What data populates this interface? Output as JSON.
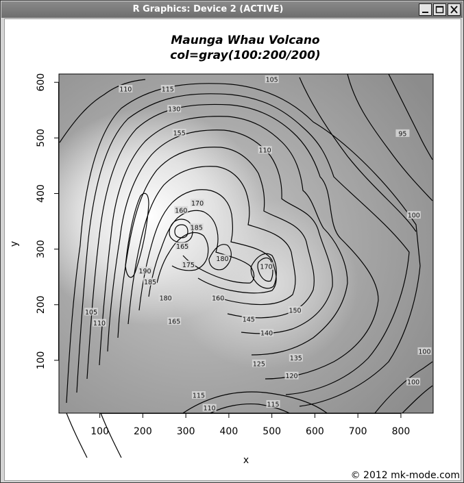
{
  "window": {
    "title": "R Graphics: Device 2 (ACTIVE)",
    "buttons": [
      {
        "name": "minimize",
        "icon": "minimize-icon"
      },
      {
        "name": "maximize",
        "icon": "maximize-icon"
      },
      {
        "name": "close",
        "icon": "close-icon"
      }
    ]
  },
  "plot": {
    "title_line1": "Maunga Whau Volcano",
    "title_line2": "col=gray(100:200/200)",
    "xlabel": "x",
    "ylabel": "y",
    "watermark": "© 2012 mk-mode.com"
  },
  "chart_data": {
    "type": "heatmap",
    "x_ticks": [
      "100",
      "200",
      "300",
      "400",
      "500",
      "600",
      "700",
      "800"
    ],
    "y_ticks": [
      "100",
      "200",
      "300",
      "400",
      "500",
      "600"
    ],
    "xlim": [
      5,
      875
    ],
    "ylim": [
      5,
      615
    ],
    "contour_labels": [
      {
        "text": "110",
        "x": 160,
        "y": 588
      },
      {
        "text": "115",
        "x": 258,
        "y": 588
      },
      {
        "text": "105",
        "x": 500,
        "y": 605
      },
      {
        "text": "130",
        "x": 273,
        "y": 552
      },
      {
        "text": "155",
        "x": 285,
        "y": 509
      },
      {
        "text": "110",
        "x": 484,
        "y": 478
      },
      {
        "text": "95",
        "x": 804,
        "y": 508
      },
      {
        "text": "100",
        "x": 830,
        "y": 361
      },
      {
        "text": "170",
        "x": 327,
        "y": 383
      },
      {
        "text": "160",
        "x": 289,
        "y": 370
      },
      {
        "text": "185",
        "x": 325,
        "y": 339
      },
      {
        "text": "165",
        "x": 292,
        "y": 305
      },
      {
        "text": "175",
        "x": 306,
        "y": 272
      },
      {
        "text": "180",
        "x": 385,
        "y": 283
      },
      {
        "text": "170",
        "x": 487,
        "y": 269
      },
      {
        "text": "190",
        "x": 205,
        "y": 261
      },
      {
        "text": "185",
        "x": 217,
        "y": 241
      },
      {
        "text": "180",
        "x": 253,
        "y": 212
      },
      {
        "text": "160",
        "x": 375,
        "y": 212
      },
      {
        "text": "150",
        "x": 554,
        "y": 190
      },
      {
        "text": "165",
        "x": 273,
        "y": 170
      },
      {
        "text": "145",
        "x": 446,
        "y": 174
      },
      {
        "text": "140",
        "x": 488,
        "y": 149
      },
      {
        "text": "135",
        "x": 556,
        "y": 104
      },
      {
        "text": "125",
        "x": 470,
        "y": 94
      },
      {
        "text": "120",
        "x": 546,
        "y": 72
      },
      {
        "text": "105",
        "x": 80,
        "y": 187
      },
      {
        "text": "110",
        "x": 99,
        "y": 167
      },
      {
        "text": "100",
        "x": 855,
        "y": 116
      },
      {
        "text": "100",
        "x": 829,
        "y": 61
      },
      {
        "text": "115",
        "x": 330,
        "y": 37
      },
      {
        "text": "110",
        "x": 355,
        "y": 14
      },
      {
        "text": "115",
        "x": 503,
        "y": 21
      }
    ]
  }
}
